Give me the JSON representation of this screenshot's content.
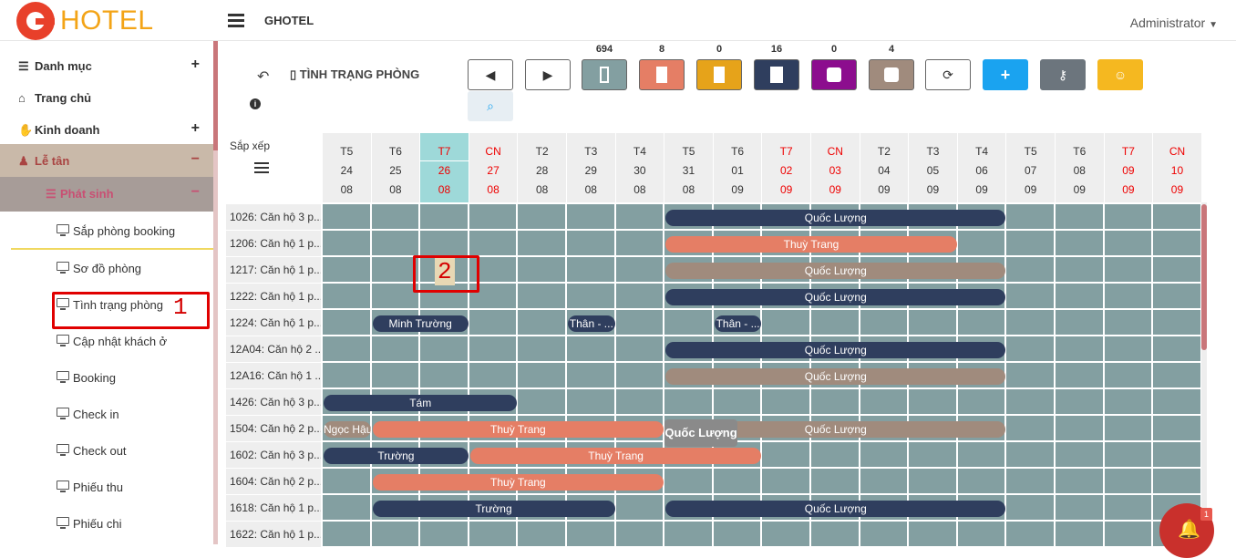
{
  "header": {
    "logo_text": "HOTEL",
    "app_name": "GHOTEL",
    "user": "Administrator"
  },
  "sidebar": {
    "items": [
      {
        "label": "Danh mục",
        "toggle": "+"
      },
      {
        "label": "Trang chủ"
      },
      {
        "label": "Kinh doanh",
        "toggle": "+"
      },
      {
        "label": "Lễ tân",
        "toggle": "−"
      },
      {
        "label": "Phát sinh",
        "toggle": "−"
      }
    ],
    "sub_items": [
      "Sắp phòng booking",
      "Sơ đồ phòng",
      "Tình trạng phòng",
      "Cập nhật khách ở",
      "Booking",
      "Check in",
      "Check out",
      "Phiếu thu",
      "Phiếu chi"
    ]
  },
  "annotations": {
    "one": "1",
    "two": "2"
  },
  "toolbar": {
    "title": "TÌNH TRẠNG PHÒNG",
    "counts": [
      "694",
      "8",
      "0",
      "16",
      "0",
      "4"
    ],
    "colors": {
      "grey": "#839fa1",
      "salmon": "#e57e65",
      "amber": "#e6a31a",
      "navy": "#2f3e5e",
      "purple": "#8c0d8e",
      "taupe": "#a08b7d",
      "blue": "#1aa3f0",
      "slate": "#6c757d",
      "yellow": "#f5b820"
    }
  },
  "grid": {
    "sort_label": "Sắp xếp",
    "days": [
      {
        "dow": "T5",
        "d": "24",
        "m": "08"
      },
      {
        "dow": "T6",
        "d": "25",
        "m": "08"
      },
      {
        "dow": "T7",
        "d": "26",
        "m": "08"
      },
      {
        "dow": "CN",
        "d": "27",
        "m": "08"
      },
      {
        "dow": "T2",
        "d": "28",
        "m": "08"
      },
      {
        "dow": "T3",
        "d": "29",
        "m": "08"
      },
      {
        "dow": "T4",
        "d": "30",
        "m": "08"
      },
      {
        "dow": "T5",
        "d": "31",
        "m": "08"
      },
      {
        "dow": "T6",
        "d": "01",
        "m": "09"
      },
      {
        "dow": "T7",
        "d": "02",
        "m": "09"
      },
      {
        "dow": "CN",
        "d": "03",
        "m": "09"
      },
      {
        "dow": "T2",
        "d": "04",
        "m": "09"
      },
      {
        "dow": "T3",
        "d": "05",
        "m": "09"
      },
      {
        "dow": "T4",
        "d": "06",
        "m": "09"
      },
      {
        "dow": "T5",
        "d": "07",
        "m": "09"
      },
      {
        "dow": "T6",
        "d": "08",
        "m": "09"
      },
      {
        "dow": "T7",
        "d": "09",
        "m": "09"
      },
      {
        "dow": "CN",
        "d": "10",
        "m": "09"
      }
    ],
    "rooms": [
      "1026: Căn hộ 3 p...",
      "1206: Căn hộ 1 p...",
      "1217: Căn hộ 1 p...",
      "1222: Căn hộ 1 p...",
      "1224: Căn hộ 1 p...",
      "12A04: Căn hộ 2 ...",
      "12A16: Căn hộ 1 ...",
      "1426: Căn hộ 3 p...",
      "1504: Căn hộ 2 p...",
      "1602: Căn hộ 3 p...",
      "1604: Căn hộ 2 p...",
      "1618: Căn hộ 1 p...",
      "1622: Căn hộ 1 p..."
    ],
    "bookings": [
      {
        "row": 0,
        "start": 7,
        "end": 14,
        "name": "Quốc Lượng",
        "color": "navy"
      },
      {
        "row": 1,
        "start": 7,
        "end": 13,
        "name": "Thuỳ Trang",
        "color": "salmon"
      },
      {
        "row": 2,
        "start": 7,
        "end": 14,
        "name": "Quốc Lượng",
        "color": "taupe"
      },
      {
        "row": 3,
        "start": 7,
        "end": 14,
        "name": "Quốc Lượng",
        "color": "navy"
      },
      {
        "row": 4,
        "start": 1,
        "end": 3,
        "name": "Minh Trường",
        "color": "navy"
      },
      {
        "row": 4,
        "start": 5,
        "end": 6,
        "name": "Thân - ...",
        "color": "navy"
      },
      {
        "row": 4,
        "start": 8,
        "end": 9,
        "name": "Thân - ...",
        "color": "navy"
      },
      {
        "row": 5,
        "start": 7,
        "end": 14,
        "name": "Quốc Lượng",
        "color": "navy"
      },
      {
        "row": 6,
        "start": 7,
        "end": 14,
        "name": "Quốc Lượng",
        "color": "taupe"
      },
      {
        "row": 7,
        "start": 0,
        "end": 4,
        "name": "Tám",
        "color": "navy"
      },
      {
        "row": 8,
        "start": 0,
        "end": 1,
        "name": "Ngọc Hậu",
        "color": "taupe"
      },
      {
        "row": 8,
        "start": 1,
        "end": 7,
        "name": "Thuỳ Trang",
        "color": "salmon"
      },
      {
        "row": 8,
        "start": 7,
        "end": 14,
        "name": "Quốc Lượng",
        "color": "taupe"
      },
      {
        "row": 9,
        "start": 0,
        "end": 3,
        "name": "Trường",
        "color": "navy"
      },
      {
        "row": 9,
        "start": 3,
        "end": 9,
        "name": "Thuỳ Trang",
        "color": "salmon"
      },
      {
        "row": 10,
        "start": 1,
        "end": 7,
        "name": "Thuỳ Trang",
        "color": "salmon"
      },
      {
        "row": 11,
        "start": 1,
        "end": 6,
        "name": "Trường",
        "color": "navy"
      },
      {
        "row": 11,
        "start": 7,
        "end": 14,
        "name": "Quốc Lượng",
        "color": "navy"
      }
    ],
    "tooltip": "Quốc Lượng"
  },
  "notifications": {
    "count": "1"
  }
}
